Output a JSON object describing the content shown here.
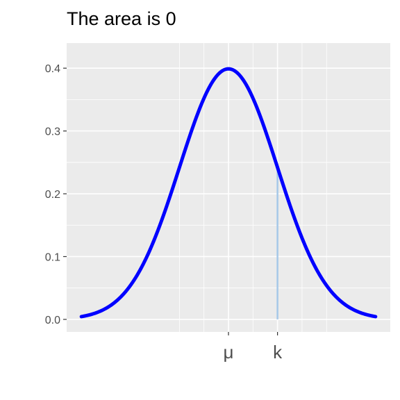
{
  "chart_data": {
    "type": "area",
    "title": "The area is 0",
    "xlabel": "",
    "ylabel": "",
    "distribution": "normal",
    "mean": 0,
    "sd": 1,
    "x_range": [
      -3,
      3
    ],
    "ylim": [
      -0.02,
      0.44
    ],
    "y_ticks": [
      0.0,
      0.1,
      0.2,
      0.3,
      0.4
    ],
    "y_tick_labels": [
      "0.0",
      "0.1",
      "0.2",
      "0.3",
      "0.4"
    ],
    "x_ticks": [
      0,
      1
    ],
    "x_tick_labels": [
      "μ",
      "k"
    ],
    "minor_x_gridlines": [
      -1,
      -0.5,
      0.5,
      1.5,
      2
    ],
    "k_value": 1,
    "shaded_area": 0,
    "grid": true,
    "legend": "none",
    "colors": {
      "curve": "#0000ff",
      "k_line": "#a6c8e8",
      "panel": "#ebebeb",
      "grid": "#ffffff",
      "tick_text": "#4d4d4d"
    }
  }
}
